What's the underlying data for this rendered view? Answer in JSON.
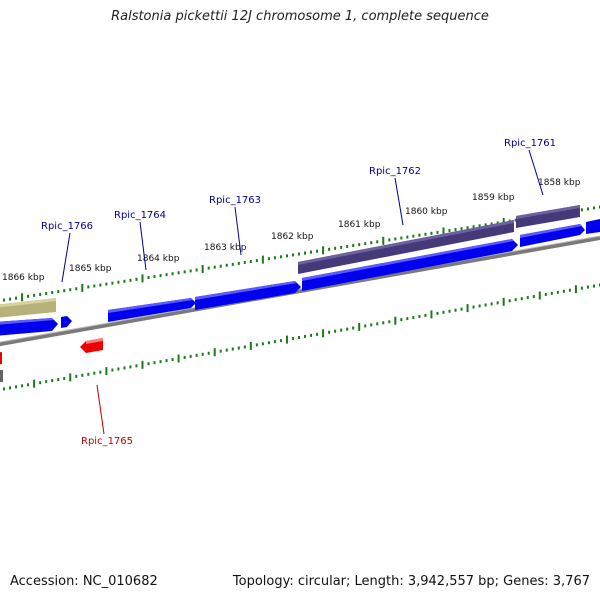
{
  "title": "Ralstonia pickettii 12J chromosome 1, complete sequence",
  "footer": {
    "accession": "Accession: NC_010682",
    "summary": "Topology: circular; Length: 3,942,557 bp; Genes: 3,767"
  },
  "colors": {
    "gene_forward": "#0000ee",
    "gene_reverse": "#ee0000",
    "gene_special": "#46397a",
    "gene_pseudo": "#b6b27a",
    "backbone": "#808080",
    "tick": "#1a7a1a",
    "label_forward": "#00008b",
    "label_reverse": "#c00000"
  },
  "scale_labels": [
    {
      "kbp": 1866,
      "text": "1866 kbp"
    },
    {
      "kbp": 1865,
      "text": "1865 kbp"
    },
    {
      "kbp": 1864,
      "text": "1864 kbp"
    },
    {
      "kbp": 1863,
      "text": "1863 kbp"
    },
    {
      "kbp": 1862,
      "text": "1862 kbp"
    },
    {
      "kbp": 1861,
      "text": "1861 kbp"
    },
    {
      "kbp": 1860,
      "text": "1860 kbp"
    },
    {
      "kbp": 1859,
      "text": "1859 kbp"
    },
    {
      "kbp": 1858,
      "text": "1858 kbp"
    }
  ],
  "gene_labels": [
    {
      "text": "Rpic_1766",
      "strand": "forward"
    },
    {
      "text": "Rpic_1764",
      "strand": "forward"
    },
    {
      "text": "Rpic_1763",
      "strand": "forward"
    },
    {
      "text": "Rpic_1762",
      "strand": "forward"
    },
    {
      "text": "Rpic_1761",
      "strand": "forward"
    },
    {
      "text": "Rpic_1765",
      "strand": "reverse"
    }
  ]
}
